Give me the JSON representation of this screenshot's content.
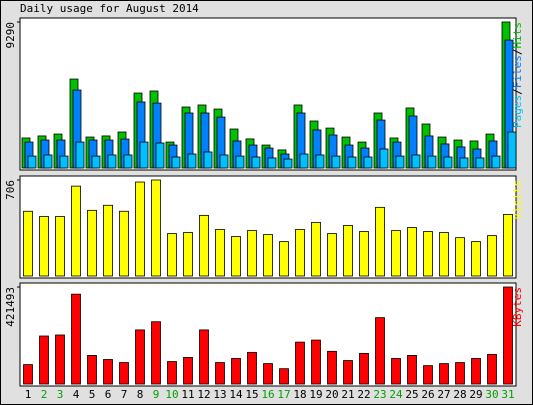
{
  "title": "Daily usage for August 2014",
  "chart_data": [
    {
      "type": "overlap-bar",
      "legend_separator": "/",
      "series": [
        {
          "name": "Hits",
          "color": "#00c000",
          "values": [
            1910,
            2040,
            2160,
            5660,
            1970,
            2040,
            2290,
            4770,
            4900,
            1650,
            3880,
            4010,
            3750,
            2480,
            1850,
            1460,
            1150,
            4010,
            2990,
            2540,
            1970,
            1650,
            3500,
            1910,
            3820,
            2800,
            1970,
            1780,
            1720,
            2160,
            9290
          ]
        },
        {
          "name": "Files",
          "color": "#0080ff",
          "values": [
            1650,
            1780,
            1780,
            4960,
            1780,
            1780,
            1840,
            4200,
            4130,
            1460,
            3500,
            3500,
            3240,
            1720,
            1460,
            1270,
            890,
            3500,
            2420,
            2100,
            1460,
            1270,
            3050,
            1650,
            3310,
            2040,
            1530,
            1340,
            1210,
            1720,
            8140
          ]
        },
        {
          "name": "Pages",
          "color": "#00c0ff",
          "values": [
            760,
            830,
            760,
            1650,
            760,
            830,
            830,
            1650,
            1590,
            700,
            890,
            1020,
            830,
            760,
            700,
            640,
            570,
            890,
            830,
            760,
            700,
            700,
            1210,
            760,
            830,
            760,
            700,
            640,
            640,
            760,
            2290
          ]
        }
      ],
      "ylim": [
        0,
        9290
      ],
      "yticks": [
        9290
      ]
    },
    {
      "type": "bar",
      "series": [
        {
          "name": "Visits",
          "color": "#ffff00",
          "values": [
            476,
            438,
            438,
            661,
            483,
            520,
            476,
            691,
            706,
            312,
            320,
            446,
            342,
            290,
            334,
            305,
            253,
            342,
            394,
            312,
            372,
            327,
            505,
            334,
            357,
            327,
            320,
            282,
            253,
            297,
            453
          ]
        }
      ],
      "ylim": [
        0,
        706
      ],
      "yticks": [
        706
      ]
    },
    {
      "type": "bar",
      "series": [
        {
          "name": "KBytes",
          "color": "#ff0000",
          "values": [
            84300,
            208500,
            213000,
            390400,
            124200,
            106500,
            93200,
            235100,
            270600,
            97600,
            115400,
            235100,
            93200,
            110900,
            137500,
            88700,
            66600,
            181900,
            190800,
            142000,
            102000,
            133100,
            288400,
            110900,
            124200,
            79900,
            88700,
            93200,
            110900,
            128700,
            421493
          ]
        }
      ],
      "ylim": [
        0,
        421493
      ],
      "yticks": [
        421493
      ],
      "categories": [
        "1",
        "2",
        "3",
        "4",
        "5",
        "6",
        "7",
        "8",
        "9",
        "10",
        "11",
        "12",
        "13",
        "14",
        "15",
        "16",
        "17",
        "18",
        "19",
        "20",
        "21",
        "22",
        "23",
        "24",
        "25",
        "26",
        "27",
        "28",
        "29",
        "30",
        "31"
      ],
      "category_colors": [
        "#000000",
        "#00a000",
        "#00a000",
        "#000000",
        "#000000",
        "#000000",
        "#000000",
        "#000000",
        "#00a000",
        "#00a000",
        "#000000",
        "#000000",
        "#000000",
        "#000000",
        "#000000",
        "#00a000",
        "#00a000",
        "#000000",
        "#000000",
        "#000000",
        "#000000",
        "#000000",
        "#00a000",
        "#00a000",
        "#000000",
        "#000000",
        "#000000",
        "#000000",
        "#000000",
        "#00a000",
        "#00a000"
      ]
    }
  ]
}
